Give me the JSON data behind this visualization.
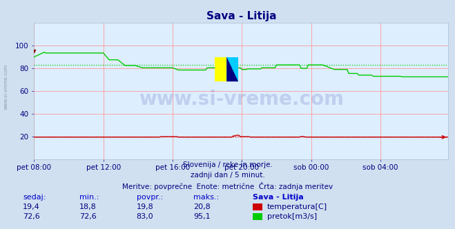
{
  "title": "Sava - Litija",
  "title_color": "#000080",
  "bg_color": "#d0e0f0",
  "plot_bg_color": "#ddeeff",
  "grid_color": "#ff9999",
  "ylim": [
    0,
    120
  ],
  "yticks": [
    20,
    40,
    60,
    80,
    100
  ],
  "xlim": [
    0,
    287
  ],
  "xtick_labels": [
    "pet 08:00",
    "pet 12:00",
    "pet 16:00",
    "pet 20:00",
    "sob 00:00",
    "sob 04:00"
  ],
  "xtick_positions": [
    0,
    48,
    96,
    144,
    192,
    240
  ],
  "xlabel_color": "#000080",
  "ylabel_color": "#000080",
  "watermark_text": "www.si-vreme.com",
  "watermark_color": "#000080",
  "watermark_alpha": 0.13,
  "subtitle_lines": [
    "Slovenija / reke in morje.",
    "zadnji dan / 5 minut.",
    "Meritve: povprečne  Enote: metrične  Črta: zadnja meritev"
  ],
  "subtitle_color": "#000080",
  "table_headers": [
    "sedaj:",
    "min.:",
    "povpr.:",
    "maks.:",
    "Sava - Litija"
  ],
  "table_row1": [
    "19,4",
    "18,8",
    "19,8",
    "20,8"
  ],
  "table_row2": [
    "72,6",
    "72,6",
    "83,0",
    "95,1"
  ],
  "table_label1": "temperatura[C]",
  "table_label2": "pretok[m3/s]",
  "temp_color": "#cc0000",
  "flow_color": "#00cc00",
  "avg_temp": 19.8,
  "avg_flow": 83.0,
  "temp_min": 18.8,
  "temp_max": 20.8,
  "flow_min": 72.6,
  "flow_max": 95.1,
  "side_label": "www.si-vreme.com"
}
